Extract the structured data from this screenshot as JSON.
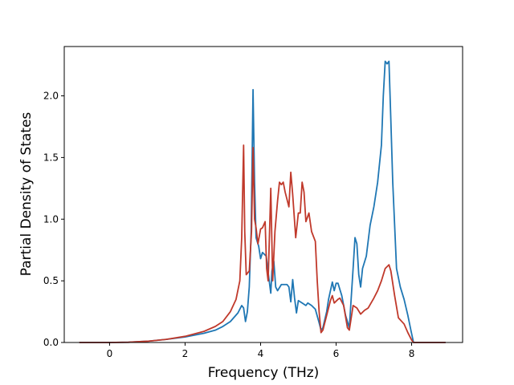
{
  "chart_data": {
    "type": "line",
    "title": "",
    "xlabel": "Frequency (THz)",
    "ylabel": "Partial Density of States",
    "xlim": [
      -1.2,
      9.35
    ],
    "ylim": [
      0.0,
      2.4
    ],
    "xticks": [
      0,
      2,
      4,
      6,
      8
    ],
    "xtick_labels": [
      "0",
      "2",
      "4",
      "6",
      "8"
    ],
    "yticks": [
      0.0,
      0.5,
      1.0,
      1.5,
      2.0
    ],
    "ytick_labels": [
      "0.0",
      "0.5",
      "1.0",
      "1.5",
      "2.0"
    ],
    "grid": false,
    "legend": "none",
    "series": [
      {
        "color": "#1f77b4",
        "points": [
          [
            -0.8,
            0
          ],
          [
            -0.3,
            0
          ],
          [
            0,
            0.0
          ],
          [
            0.5,
            0.002
          ],
          [
            1,
            0.01
          ],
          [
            1.5,
            0.025
          ],
          [
            2,
            0.045
          ],
          [
            2.5,
            0.075
          ],
          [
            2.8,
            0.1
          ],
          [
            3.0,
            0.13
          ],
          [
            3.2,
            0.17
          ],
          [
            3.4,
            0.24
          ],
          [
            3.5,
            0.3
          ],
          [
            3.55,
            0.28
          ],
          [
            3.6,
            0.17
          ],
          [
            3.65,
            0.25
          ],
          [
            3.7,
            0.45
          ],
          [
            3.75,
            0.9
          ],
          [
            3.8,
            2.05
          ],
          [
            3.84,
            1.3
          ],
          [
            3.88,
            0.85
          ],
          [
            3.95,
            0.78
          ],
          [
            4.0,
            0.68
          ],
          [
            4.05,
            0.73
          ],
          [
            4.15,
            0.7
          ],
          [
            4.22,
            0.52
          ],
          [
            4.27,
            0.4
          ],
          [
            4.3,
            0.58
          ],
          [
            4.35,
            0.66
          ],
          [
            4.4,
            0.45
          ],
          [
            4.45,
            0.42
          ],
          [
            4.55,
            0.47
          ],
          [
            4.7,
            0.47
          ],
          [
            4.75,
            0.45
          ],
          [
            4.8,
            0.33
          ],
          [
            4.85,
            0.51
          ],
          [
            4.9,
            0.36
          ],
          [
            4.95,
            0.24
          ],
          [
            5.0,
            0.34
          ],
          [
            5.1,
            0.32
          ],
          [
            5.2,
            0.3
          ],
          [
            5.25,
            0.32
          ],
          [
            5.35,
            0.3
          ],
          [
            5.45,
            0.27
          ],
          [
            5.55,
            0.16
          ],
          [
            5.6,
            0.1
          ],
          [
            5.65,
            0.12
          ],
          [
            5.75,
            0.25
          ],
          [
            5.8,
            0.35
          ],
          [
            5.85,
            0.42
          ],
          [
            5.9,
            0.49
          ],
          [
            5.95,
            0.42
          ],
          [
            6.0,
            0.48
          ],
          [
            6.05,
            0.48
          ],
          [
            6.15,
            0.38
          ],
          [
            6.25,
            0.22
          ],
          [
            6.35,
            0.12
          ],
          [
            6.45,
            0.6
          ],
          [
            6.5,
            0.85
          ],
          [
            6.55,
            0.8
          ],
          [
            6.6,
            0.55
          ],
          [
            6.65,
            0.45
          ],
          [
            6.7,
            0.6
          ],
          [
            6.8,
            0.7
          ],
          [
            6.9,
            0.95
          ],
          [
            7.0,
            1.1
          ],
          [
            7.1,
            1.3
          ],
          [
            7.2,
            1.6
          ],
          [
            7.25,
            2.0
          ],
          [
            7.3,
            2.28
          ],
          [
            7.35,
            2.26
          ],
          [
            7.4,
            2.28
          ],
          [
            7.45,
            1.8
          ],
          [
            7.5,
            1.3
          ],
          [
            7.6,
            0.6
          ],
          [
            7.7,
            0.45
          ],
          [
            7.8,
            0.35
          ],
          [
            7.9,
            0.22
          ],
          [
            7.98,
            0.1
          ],
          [
            8.05,
            0.0
          ],
          [
            8.5,
            0.0
          ],
          [
            8.9,
            0.0
          ]
        ]
      },
      {
        "color": "#c0392b",
        "points": [
          [
            -0.8,
            0
          ],
          [
            -0.3,
            0
          ],
          [
            0,
            0.0
          ],
          [
            0.5,
            0.002
          ],
          [
            1,
            0.01
          ],
          [
            1.5,
            0.025
          ],
          [
            2,
            0.05
          ],
          [
            2.5,
            0.09
          ],
          [
            2.8,
            0.13
          ],
          [
            3.0,
            0.17
          ],
          [
            3.2,
            0.25
          ],
          [
            3.35,
            0.35
          ],
          [
            3.45,
            0.5
          ],
          [
            3.5,
            0.85
          ],
          [
            3.55,
            1.6
          ],
          [
            3.58,
            0.9
          ],
          [
            3.62,
            0.55
          ],
          [
            3.7,
            0.58
          ],
          [
            3.76,
            0.9
          ],
          [
            3.8,
            1.58
          ],
          [
            3.84,
            1.0
          ],
          [
            3.88,
            0.93
          ],
          [
            3.93,
            0.8
          ],
          [
            4.0,
            0.92
          ],
          [
            4.05,
            0.93
          ],
          [
            4.12,
            0.98
          ],
          [
            4.16,
            0.6
          ],
          [
            4.2,
            0.5
          ],
          [
            4.27,
            1.25
          ],
          [
            4.32,
            0.5
          ],
          [
            4.38,
            0.9
          ],
          [
            4.45,
            1.15
          ],
          [
            4.5,
            1.3
          ],
          [
            4.55,
            1.28
          ],
          [
            4.6,
            1.3
          ],
          [
            4.65,
            1.22
          ],
          [
            4.75,
            1.1
          ],
          [
            4.8,
            1.38
          ],
          [
            4.85,
            1.2
          ],
          [
            4.93,
            0.85
          ],
          [
            5.0,
            1.05
          ],
          [
            5.05,
            1.05
          ],
          [
            5.1,
            1.3
          ],
          [
            5.15,
            1.22
          ],
          [
            5.2,
            0.98
          ],
          [
            5.28,
            1.05
          ],
          [
            5.35,
            0.9
          ],
          [
            5.45,
            0.82
          ],
          [
            5.5,
            0.5
          ],
          [
            5.55,
            0.25
          ],
          [
            5.6,
            0.08
          ],
          [
            5.65,
            0.1
          ],
          [
            5.75,
            0.22
          ],
          [
            5.85,
            0.34
          ],
          [
            5.9,
            0.38
          ],
          [
            5.95,
            0.32
          ],
          [
            6.05,
            0.35
          ],
          [
            6.1,
            0.36
          ],
          [
            6.2,
            0.3
          ],
          [
            6.3,
            0.12
          ],
          [
            6.35,
            0.1
          ],
          [
            6.45,
            0.3
          ],
          [
            6.55,
            0.28
          ],
          [
            6.65,
            0.23
          ],
          [
            6.75,
            0.26
          ],
          [
            6.85,
            0.28
          ],
          [
            7.0,
            0.36
          ],
          [
            7.1,
            0.42
          ],
          [
            7.2,
            0.5
          ],
          [
            7.3,
            0.6
          ],
          [
            7.4,
            0.63
          ],
          [
            7.45,
            0.58
          ],
          [
            7.55,
            0.38
          ],
          [
            7.65,
            0.2
          ],
          [
            7.8,
            0.15
          ],
          [
            7.9,
            0.08
          ],
          [
            8.0,
            0.02
          ],
          [
            8.05,
            0.0
          ],
          [
            8.5,
            0.0
          ],
          [
            8.9,
            0.0
          ]
        ]
      }
    ]
  }
}
